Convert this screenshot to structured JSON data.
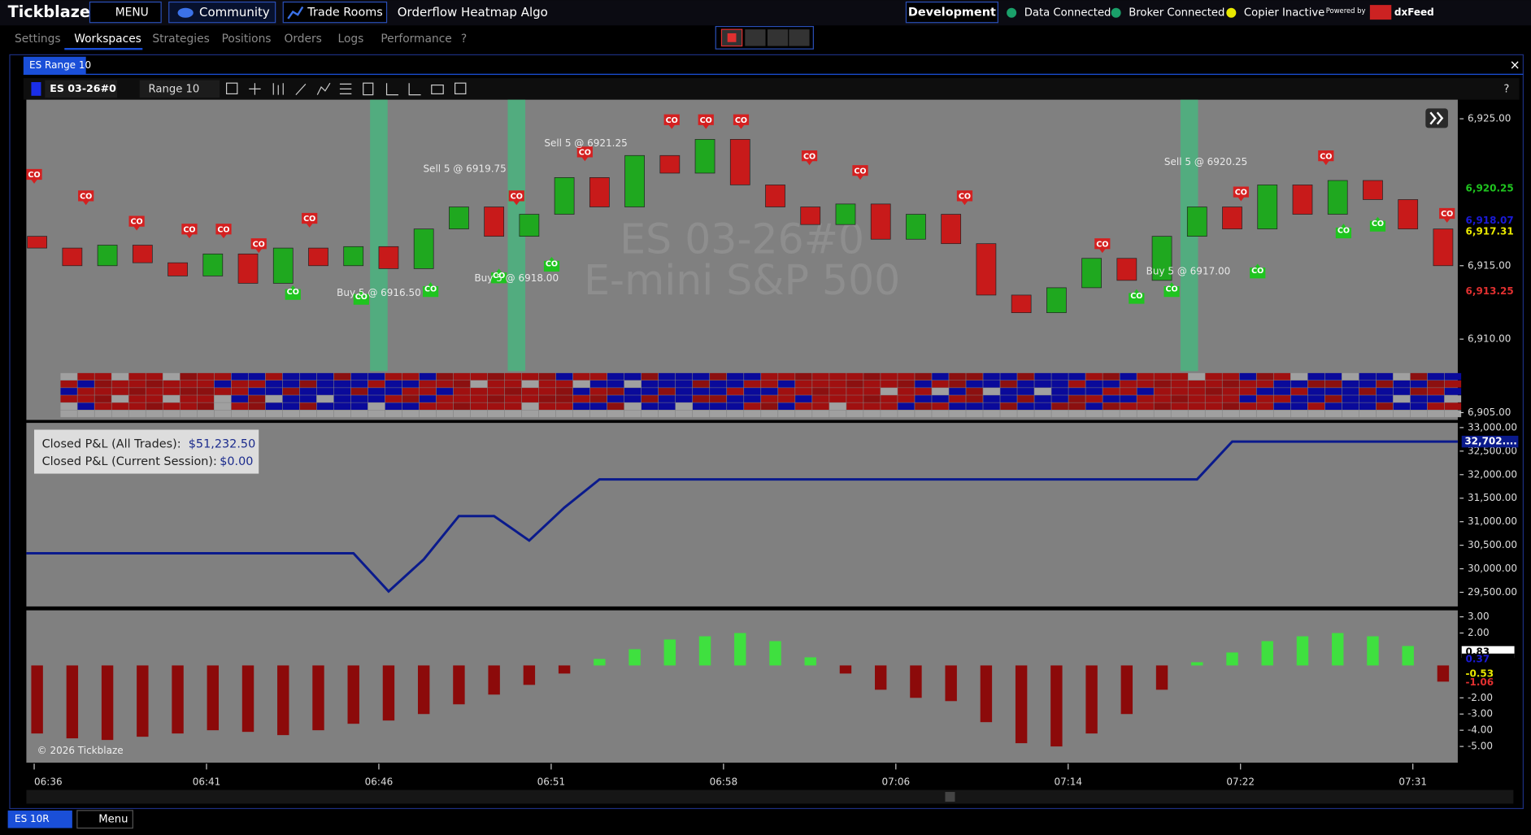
{
  "app": {
    "brand": "Tickblaze",
    "menu": "MENU",
    "community": "Community",
    "trade_rooms": "Trade Rooms",
    "window_title": "Orderflow Heatmap Algo",
    "environment": "Development",
    "status": [
      "Data Connected",
      "Broker Connected",
      "Copier Inactive"
    ],
    "powered_by": "Powered by",
    "provider": "dxFeed",
    "nav": [
      "Settings",
      "Workspaces",
      "Strategies",
      "Positions",
      "Orders",
      "Logs",
      "Performance",
      "?"
    ],
    "tab": "ES Range 10",
    "close": "×",
    "symbol": "ES 03-26#0",
    "bar_type": "Range 10",
    "help": "?",
    "bottom_tab": "ES 10R",
    "bottom_menu": "Menu"
  },
  "price_chart": {
    "watermark": [
      "ES 03-26#0",
      "E-mini S&P 500"
    ],
    "co_label": "CO",
    "annotations": [
      "Sell 5 @ 6919.75",
      "Sell 5 @ 6921.25",
      "Sell 5 @ 6920.25",
      "Buy 5 @ 6916.50",
      "Buy 5 @ 6918.00",
      "Buy 5 @ 6917.00"
    ],
    "open": [
      6917,
      6916.2,
      6915,
      6916.4,
      6915.2,
      6914.3,
      6915.8,
      6913.8,
      6916.2,
      6915,
      6916.3,
      6914.8,
      6917.5,
      6919,
      6917,
      6918.5,
      6921,
      6919,
      6922.5,
      6921.3,
      6923.6,
      6920.5,
      6919,
      6917.8,
      6919.2,
      6916.8,
      6918.5,
      6916.5,
      6913,
      6911.8,
      6913.5,
      6915.5,
      6914,
      6917,
      6919,
      6917.5,
      6920.5,
      6918.5,
      6920.8,
      6919.5,
      6917.5
    ],
    "close": [
      6916.2,
      6915,
      6916.4,
      6915.2,
      6914.3,
      6915.8,
      6913.8,
      6916.2,
      6915,
      6916.3,
      6914.8,
      6917.5,
      6919,
      6917,
      6918.5,
      6921,
      6919,
      6922.5,
      6921.3,
      6923.6,
      6920.5,
      6919,
      6917.8,
      6919.2,
      6916.8,
      6918.5,
      6916.5,
      6913,
      6911.8,
      6913.5,
      6915.5,
      6914,
      6917,
      6919,
      6917.5,
      6920.5,
      6918.5,
      6920.8,
      6919.5,
      6917.5,
      6915
    ],
    "ylim": [
      6904.5,
      6926.3
    ],
    "yticks": [
      {
        "value": 6925,
        "label": "6,925.00"
      },
      {
        "value": 6915,
        "label": "6,915.00"
      },
      {
        "value": 6910,
        "label": "6,910.00"
      },
      {
        "value": 6905,
        "label": "6,905.00"
      }
    ],
    "price_labels": [
      {
        "value": 6920.25,
        "label": "6,920.25",
        "color": "#1fc41f"
      },
      {
        "value": 6918.07,
        "label": "6,918.07",
        "color": "#1a1ad6"
      },
      {
        "value": 6917.31,
        "label": "6,917.31",
        "color": "#e8e800"
      },
      {
        "value": 6913.25,
        "label": "6,913.25",
        "color": "#e03030"
      }
    ]
  },
  "pnl_chart": {
    "closed_all_label": "Closed P&L (All Trades):",
    "closed_all": "$51,232.50",
    "closed_session_label": "Closed P&L (Current Session):",
    "closed_session": "$0.00",
    "values": [
      30330,
      30330,
      30330,
      30330,
      30330,
      30330,
      30330,
      30330,
      30330,
      30330,
      29520,
      30200,
      31120,
      31120,
      30600,
      31300,
      31900,
      31900,
      31900,
      31900,
      31900,
      31900,
      31900,
      31900,
      31900,
      31900,
      31900,
      31900,
      31900,
      31900,
      31900,
      31900,
      31900,
      31900,
      32702,
      32702,
      32702,
      32702,
      32702,
      32702,
      32702
    ],
    "color": "#0a1a8c",
    "ylim": [
      29200,
      33100
    ],
    "yticks": [
      {
        "value": 33000,
        "label": "33,000.00"
      },
      {
        "value": 32500,
        "label": "32,500.00"
      },
      {
        "value": 32000,
        "label": "32,000.00"
      },
      {
        "value": 31500,
        "label": "31,500.00"
      },
      {
        "value": 31000,
        "label": "31,000.00"
      },
      {
        "value": 30500,
        "label": "30,500.00"
      },
      {
        "value": 30000,
        "label": "30,000.00"
      },
      {
        "value": 29500,
        "label": "29,500.00"
      }
    ],
    "last_label": {
      "value": 32702,
      "label": "32,702...."
    }
  },
  "oscillator": {
    "copyright": "© 2026 Tickblaze",
    "values": [
      -4.2,
      -4.5,
      -4.6,
      -4.4,
      -4.2,
      -4,
      -4.1,
      -4.3,
      -4,
      -3.6,
      -3.4,
      -3,
      -2.4,
      -1.8,
      -1.2,
      -0.5,
      0.4,
      1,
      1.6,
      1.8,
      2,
      1.5,
      0.5,
      -0.5,
      -1.5,
      -2,
      -2.2,
      -3.5,
      -4.8,
      -5,
      -4.2,
      -3,
      -1.5,
      0.2,
      0.8,
      1.5,
      1.8,
      2,
      1.8,
      1.2,
      -1
    ],
    "ylim": [
      -6,
      3.4
    ],
    "yticks": [
      {
        "value": 3,
        "label": "3.00"
      },
      {
        "value": 2,
        "label": "2.00"
      },
      {
        "value": -2,
        "label": "-2.00"
      },
      {
        "value": -3,
        "label": "-3.00"
      },
      {
        "value": -4,
        "label": "-4.00"
      },
      {
        "value": -5,
        "label": "-5.00"
      }
    ],
    "value_labels": [
      {
        "value": 0.83,
        "label": "0.83",
        "color": "#000"
      },
      {
        "value": 0.37,
        "label": "0.37",
        "color": "#1a1ad6"
      },
      {
        "value": -0.53,
        "label": "-0.53",
        "color": "#e8e800"
      },
      {
        "value": -1.06,
        "label": "-1.06",
        "color": "#e03030"
      }
    ]
  },
  "time_axis": [
    "06:36",
    "06:41",
    "06:46",
    "06:51",
    "06:58",
    "07:06",
    "07:14",
    "07:22",
    "07:31"
  ]
}
